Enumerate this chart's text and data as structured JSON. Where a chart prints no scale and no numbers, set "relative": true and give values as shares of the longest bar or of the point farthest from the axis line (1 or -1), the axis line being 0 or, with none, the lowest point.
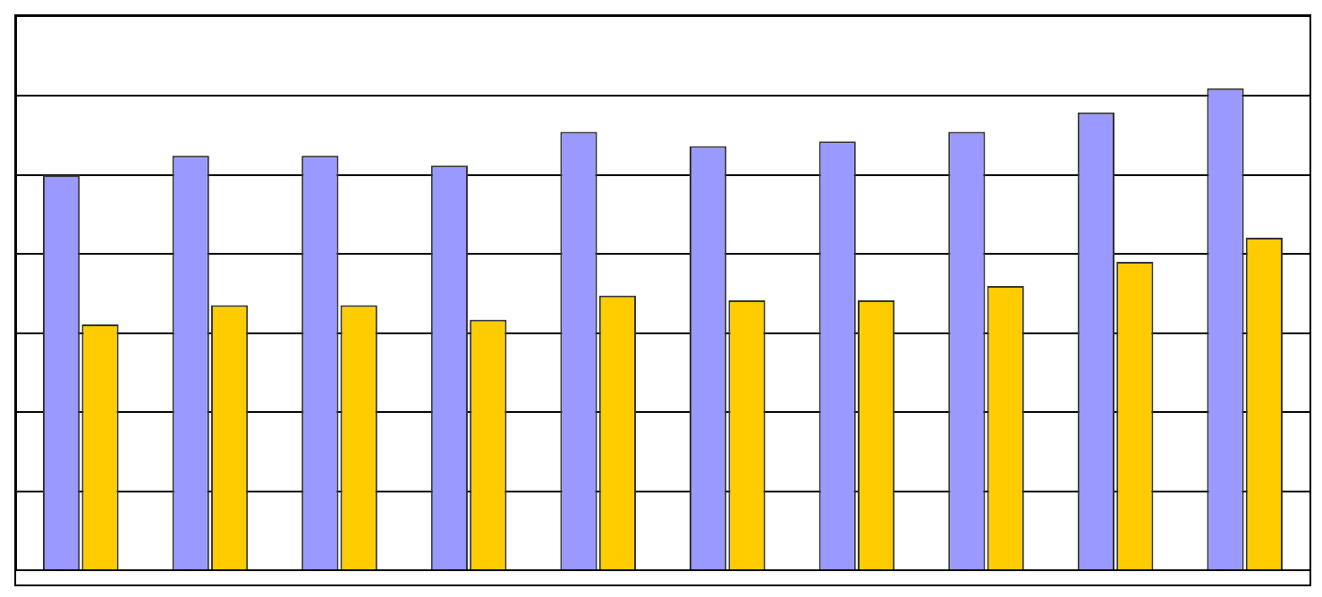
{
  "chart_data": {
    "type": "bar",
    "relative": true,
    "grid": "y",
    "legend": false,
    "tick_labels": false,
    "categories": [
      null,
      null,
      null,
      null,
      null,
      null,
      null,
      null,
      null,
      null
    ],
    "series": [
      {
        "color": "#9999ff",
        "values": [
          0.82,
          0.86,
          0.86,
          0.84,
          0.91,
          0.88,
          0.89,
          0.91,
          0.95,
          1
        ]
      },
      {
        "color": "#ffcc00",
        "values": [
          0.51,
          0.55,
          0.55,
          0.52,
          0.57,
          0.56,
          0.56,
          0.59,
          0.64,
          0.69
        ]
      }
    ]
  }
}
